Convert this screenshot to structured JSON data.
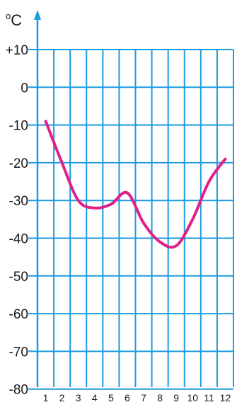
{
  "chart_data": {
    "type": "line",
    "ylabel": "°C",
    "x": [
      1,
      2,
      3,
      4,
      5,
      6,
      7,
      8,
      9,
      10,
      11,
      12
    ],
    "y_tick_labels": [
      "+10",
      "0",
      "-10",
      "-20",
      "-30",
      "-40",
      "-50",
      "-60",
      "-70",
      "-80"
    ],
    "x_tick_labels": [
      "1",
      "2",
      "3",
      "4",
      "5",
      "6",
      "7",
      "8",
      "9",
      "10",
      "11",
      "12"
    ],
    "ylim": [
      -80,
      10
    ],
    "xlim": [
      1,
      12
    ],
    "grid": true,
    "series": [
      {
        "values": [
          -9,
          -20,
          -30,
          -32,
          -31,
          -28,
          -36,
          -41,
          -42,
          -35,
          -25,
          -19
        ]
      }
    ],
    "colors": {
      "line": "#e0218a",
      "grid": "#1b9be0",
      "axis": "#1b9be0"
    }
  }
}
